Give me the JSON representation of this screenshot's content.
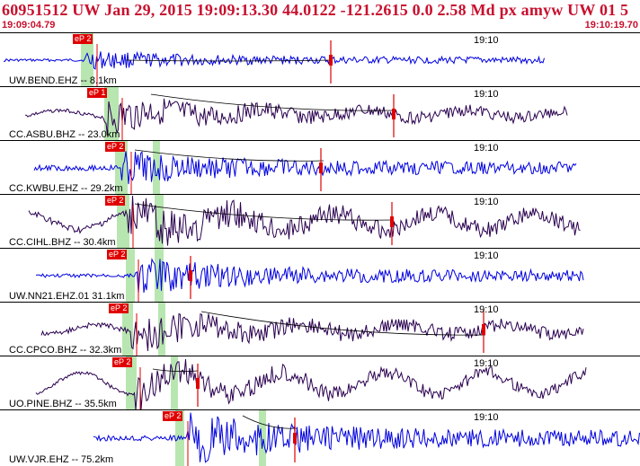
{
  "header": {
    "title": "60951512 UW Jan 29, 2015 19:09:13.30    44.0122 -121.2615  0.0 2.58 Md px amyw UW 01   5",
    "start_time": "19:09:04.79",
    "end_time": "19:10:19.70"
  },
  "colors": {
    "header_red": "#c8102e",
    "trace_blue": "#0000e0",
    "trace_purple": "#2a0050",
    "pick_red": "#e00000",
    "green_band": "#b8e6b0"
  },
  "traces": [
    {
      "label": "UW.BEND.EHZ -- 8.1km",
      "pick_label": "eP 2",
      "time_label": "19:10",
      "color": "#0000e0"
    },
    {
      "label": "CC.ASBU.BHZ -- 23.0km",
      "pick_label": "eP 1",
      "time_label": "19:10",
      "color": "#2a0050"
    },
    {
      "label": "CC.KWBU.EHZ -- 29.2km",
      "pick_label": "eP 2",
      "time_label": "19:10",
      "color": "#0000e0"
    },
    {
      "label": "CC.CIHL.BHZ -- 30.4km",
      "pick_label": "eP 2",
      "time_label": "19:10",
      "color": "#2a0050"
    },
    {
      "label": "UW.NN21.EHZ.01 31.1km",
      "pick_label": "eP 2",
      "time_label": "19:10",
      "color": "#0000e0"
    },
    {
      "label": "CC.CPCO.BHZ -- 32.3km",
      "pick_label": "eP 2",
      "time_label": "19:10",
      "color": "#2a0050"
    },
    {
      "label": "UO.PINE.BHZ -- 35.5km",
      "pick_label": "eP 2",
      "time_label": "19:10",
      "color": "#2a0050"
    },
    {
      "label": "UW.VJR.EHZ -- 75.2km",
      "pick_label": "eP 2",
      "time_label": "19:10",
      "color": "#0000e0"
    }
  ]
}
